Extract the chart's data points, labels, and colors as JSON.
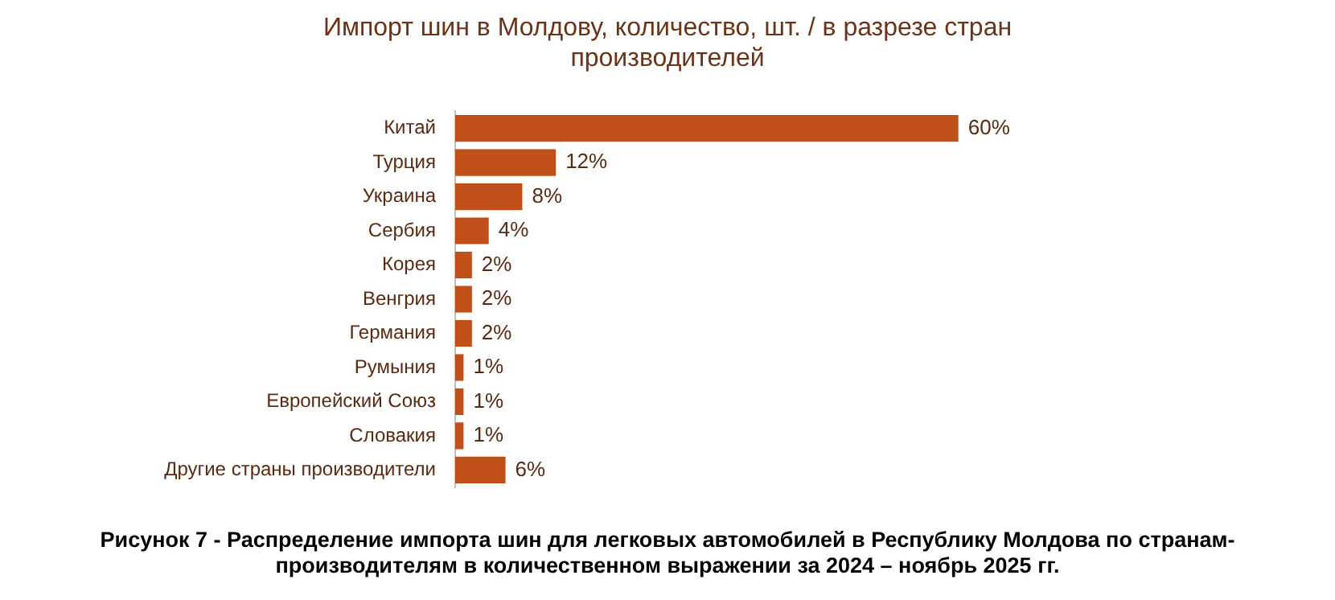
{
  "chart_data": {
    "type": "bar",
    "orientation": "horizontal",
    "title": "Импорт шин в Молдову, количество, шт. / в разрезе стран производителей",
    "categories": [
      "Китай",
      "Турция",
      "Украина",
      "Сербия",
      "Корея",
      "Венгрия",
      "Германия",
      "Румыния",
      "Европейский Союз",
      "Словакия",
      "Другие страны производители"
    ],
    "values": [
      60,
      12,
      8,
      4,
      2,
      2,
      2,
      1,
      1,
      1,
      6
    ],
    "value_labels": [
      "60%",
      "12%",
      "8%",
      "4%",
      "2%",
      "2%",
      "2%",
      "1%",
      "1%",
      "1%",
      "6%"
    ],
    "color": "#c0501a",
    "tick_labels": "y",
    "annotations": [
      "Рисунок 7 - Распределение импорта шин для легковых автомобилей в Республику Молдова по странам-производителям в количественном выражении за 2024 – ноябрь 2025 гг."
    ]
  }
}
